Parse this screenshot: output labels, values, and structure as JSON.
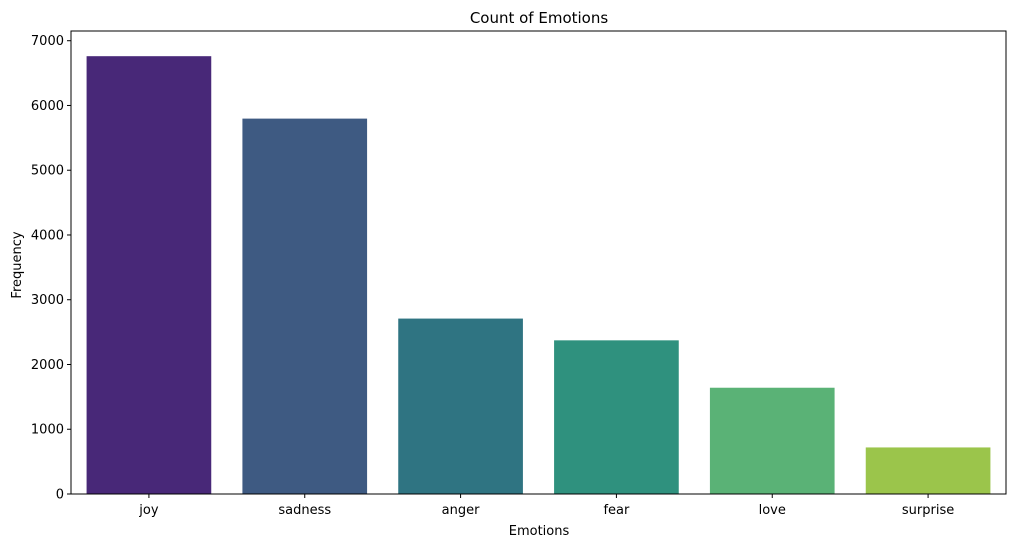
{
  "chart_data": {
    "type": "bar",
    "title": "Count of Emotions",
    "xlabel": "Emotions",
    "ylabel": "Frequency",
    "categories": [
      "joy",
      "sadness",
      "anger",
      "fear",
      "love",
      "surprise"
    ],
    "values": [
      6761,
      5797,
      2709,
      2373,
      1641,
      719
    ],
    "colors": [
      "#482878",
      "#3e4a89",
      "#31688e",
      "#26828e",
      "#1f9e89",
      "#35b779",
      "#6ece58",
      "#b5de2b"
    ],
    "bar_colors": [
      "#482878",
      "#3e5a82",
      "#2f7482",
      "#2f917e",
      "#5ab276",
      "#9bc54b"
    ],
    "ylim": [
      0,
      7150
    ],
    "yticks": [
      0,
      1000,
      2000,
      3000,
      4000,
      5000,
      6000,
      7000
    ],
    "grid": false,
    "legend": "none"
  }
}
